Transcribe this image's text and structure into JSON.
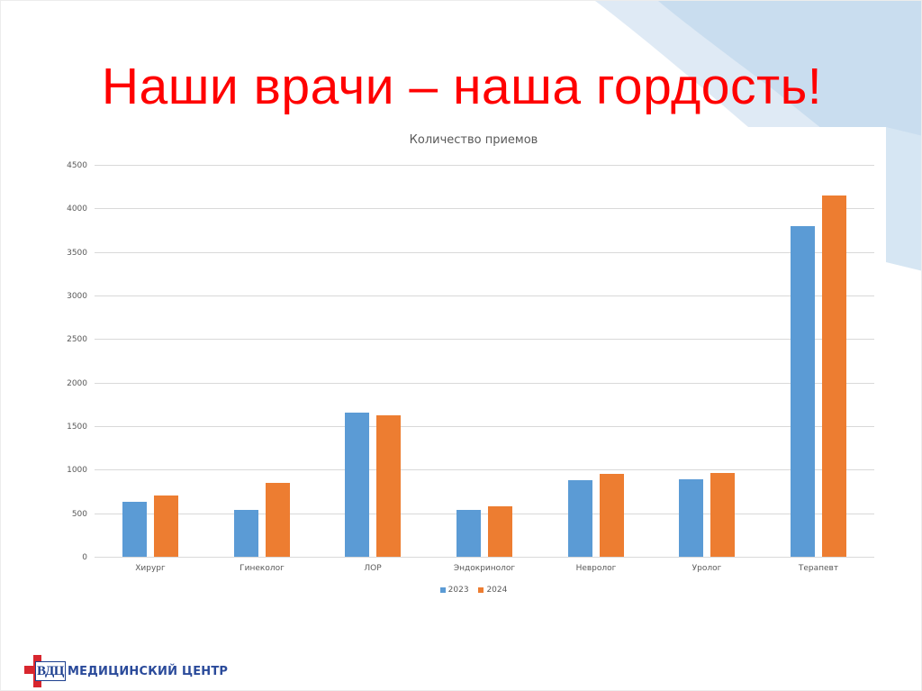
{
  "slide": {
    "title": "Наши врачи – наша гордость!",
    "logo": {
      "abbr": "ВДЦ",
      "text": "МЕДИЦИНСКИЙ ЦЕНТР"
    },
    "colors": {
      "title": "#ff0000",
      "series_2023": "#5b9bd5",
      "series_2024": "#ed7d31",
      "background_swoosh": "#c9ddef"
    }
  },
  "chart": {
    "title": "Количество приемов",
    "y_ticks": [
      "0",
      "500",
      "1000",
      "1500",
      "2000",
      "2500",
      "3000",
      "3500",
      "4000",
      "4500"
    ],
    "categories": [
      "Хирург",
      "Гинеколог",
      "ЛОР",
      "Эндокринолог",
      "Невролог",
      "Уролог",
      "Терапевт"
    ],
    "legend": [
      "2023",
      "2024"
    ]
  },
  "chart_data": {
    "type": "bar",
    "title": "Количество приемов",
    "xlabel": "",
    "ylabel": "",
    "categories": [
      "Хирург",
      "Гинеколог",
      "ЛОР",
      "Эндокринолог",
      "Невролог",
      "Уролог",
      "Терапевт"
    ],
    "series": [
      {
        "name": "2023",
        "color": "#5b9bd5",
        "values": [
          630,
          540,
          1650,
          540,
          880,
          890,
          3800
        ]
      },
      {
        "name": "2024",
        "color": "#ed7d31",
        "values": [
          700,
          850,
          1620,
          580,
          950,
          960,
          4150
        ]
      }
    ],
    "ylim": [
      0,
      4500
    ],
    "yticks": [
      0,
      500,
      1000,
      1500,
      2000,
      2500,
      3000,
      3500,
      4000,
      4500
    ],
    "grid": true,
    "legend_position": "bottom"
  }
}
